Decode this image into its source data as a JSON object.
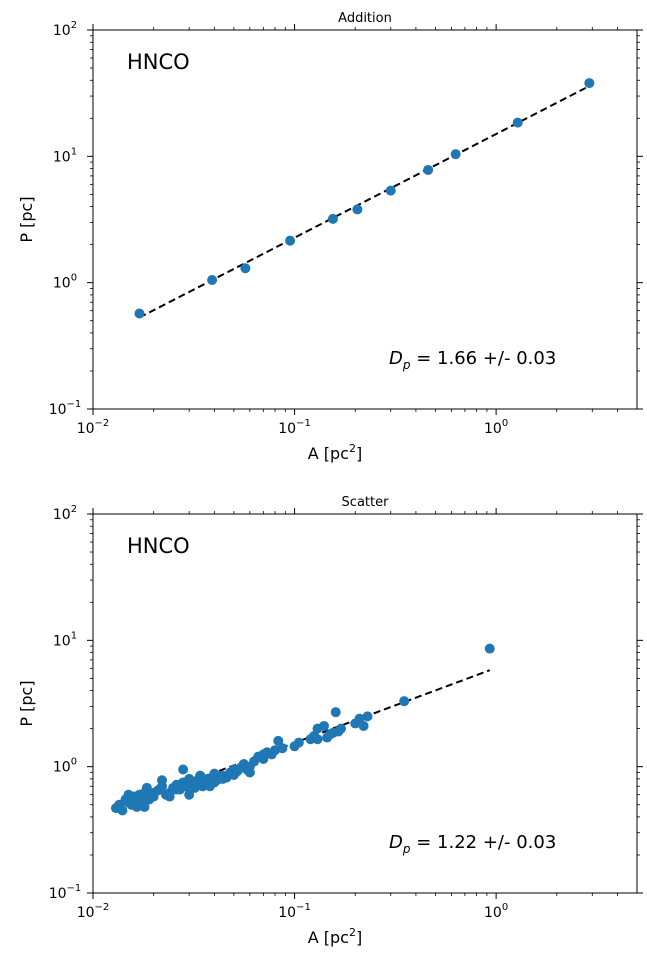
{
  "chart_data": [
    {
      "type": "scatter",
      "title": "Addition",
      "annotation": "HNCO",
      "fit_label": "D_p = 1.66 +/- 0.03",
      "fit_symbol": "D",
      "fit_subscript": "p",
      "fit_text": " = 1.66 +/- 0.03",
      "xlabel": "A [pc",
      "xlabel_sup": "2",
      "xlabel_close": "]",
      "ylabel": "P [pc]",
      "xscale": "log",
      "yscale": "log",
      "xlim": [
        0.01,
        5
      ],
      "ylim": [
        0.1,
        100
      ],
      "xticks": [
        {
          "value": 0.01,
          "base": "10",
          "exp": "−2"
        },
        {
          "value": 0.1,
          "base": "10",
          "exp": "−1"
        },
        {
          "value": 1,
          "base": "10",
          "exp": "0"
        }
      ],
      "yticks": [
        {
          "value": 0.1,
          "base": "10",
          "exp": "−1"
        },
        {
          "value": 1,
          "base": "10",
          "exp": "0"
        },
        {
          "value": 10,
          "base": "10",
          "exp": "1"
        },
        {
          "value": 100,
          "base": "10",
          "exp": "2"
        }
      ],
      "marker_color": "#1f77b4",
      "line_color": "#000000",
      "series": [
        {
          "x": [
            0.017,
            0.039,
            0.057,
            0.095,
            0.155,
            0.205,
            0.3,
            0.46,
            0.63,
            1.28,
            2.9
          ],
          "y": [
            0.57,
            1.05,
            1.3,
            2.15,
            3.2,
            3.8,
            5.35,
            7.8,
            10.4,
            18.5,
            38
          ]
        }
      ],
      "fit_line": {
        "x": [
          0.017,
          2.9
        ],
        "y": [
          0.53,
          36
        ]
      }
    },
    {
      "type": "scatter",
      "title": "Scatter",
      "annotation": "HNCO",
      "fit_label": "D_p = 1.22 +/- 0.03",
      "fit_symbol": "D",
      "fit_subscript": "p",
      "fit_text": " = 1.22 +/- 0.03",
      "xlabel": "A [pc",
      "xlabel_sup": "2",
      "xlabel_close": "]",
      "ylabel": "P [pc]",
      "xscale": "log",
      "yscale": "log",
      "xlim": [
        0.01,
        5
      ],
      "ylim": [
        0.1,
        100
      ],
      "xticks": [
        {
          "value": 0.01,
          "base": "10",
          "exp": "−2"
        },
        {
          "value": 0.1,
          "base": "10",
          "exp": "−1"
        },
        {
          "value": 1,
          "base": "10",
          "exp": "0"
        }
      ],
      "yticks": [
        {
          "value": 0.1,
          "base": "10",
          "exp": "−1"
        },
        {
          "value": 1,
          "base": "10",
          "exp": "0"
        },
        {
          "value": 10,
          "base": "10",
          "exp": "1"
        },
        {
          "value": 100,
          "base": "10",
          "exp": "2"
        }
      ],
      "marker_color": "#1f77b4",
      "line_color": "#000000",
      "series": [
        {
          "x": [
            0.013,
            0.0135,
            0.014,
            0.0145,
            0.015,
            0.0155,
            0.016,
            0.0165,
            0.017,
            0.0175,
            0.018,
            0.0185,
            0.019,
            0.0195,
            0.02,
            0.021,
            0.022,
            0.023,
            0.024,
            0.025,
            0.026,
            0.027,
            0.028,
            0.029,
            0.03,
            0.031,
            0.032,
            0.033,
            0.034,
            0.035,
            0.036,
            0.037,
            0.038,
            0.04,
            0.041,
            0.042,
            0.044,
            0.046,
            0.048,
            0.05,
            0.052,
            0.054,
            0.056,
            0.058,
            0.06,
            0.063,
            0.066,
            0.07,
            0.073,
            0.077,
            0.08,
            0.083,
            0.087,
            0.1,
            0.105,
            0.12,
            0.125,
            0.13,
            0.14,
            0.145,
            0.15,
            0.155,
            0.16,
            0.165,
            0.17,
            0.2,
            0.21,
            0.22,
            0.23,
            0.35,
            0.93,
            0.016,
            0.018,
            0.02,
            0.024,
            0.028,
            0.03,
            0.035,
            0.04,
            0.044,
            0.015,
            0.018,
            0.022,
            0.026,
            0.033,
            0.038,
            0.05,
            0.06,
            0.07,
            0.13
          ],
          "y": [
            0.47,
            0.5,
            0.45,
            0.55,
            0.52,
            0.5,
            0.58,
            0.48,
            0.6,
            0.55,
            0.62,
            0.68,
            0.55,
            0.6,
            0.58,
            0.65,
            0.7,
            0.6,
            0.62,
            0.68,
            0.72,
            0.66,
            0.75,
            0.7,
            0.8,
            0.72,
            0.68,
            0.78,
            0.85,
            0.7,
            0.75,
            0.8,
            0.72,
            0.88,
            0.78,
            0.8,
            0.85,
            0.82,
            0.9,
            0.95,
            0.92,
            0.98,
            1.05,
            0.95,
            1.0,
            1.1,
            1.2,
            1.15,
            1.3,
            1.25,
            1.35,
            1.6,
            1.4,
            1.45,
            1.55,
            1.65,
            1.75,
            2.0,
            2.1,
            1.7,
            1.8,
            1.85,
            2.7,
            1.9,
            2.0,
            2.2,
            2.4,
            2.1,
            2.5,
            3.3,
            8.6,
            0.5,
            0.55,
            0.62,
            0.58,
            0.95,
            0.6,
            0.7,
            0.75,
            0.8,
            0.6,
            0.48,
            0.78,
            0.66,
            0.74,
            0.7,
            0.86,
            0.9,
            1.25,
            1.65
          ]
        }
      ],
      "fit_line": {
        "x": [
          0.013,
          0.93
        ],
        "y": [
          0.46,
          5.8
        ]
      }
    }
  ]
}
